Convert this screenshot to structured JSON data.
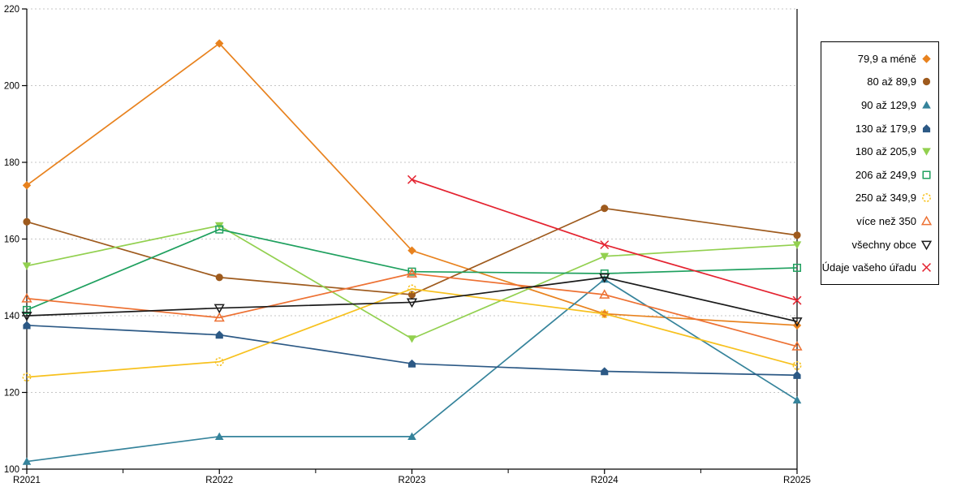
{
  "chart_data": {
    "type": "line",
    "title": "",
    "xlabel": "",
    "ylabel": "",
    "categories": [
      "R2021",
      "R2022",
      "R2023",
      "R2024",
      "R2025"
    ],
    "ylim": [
      100,
      220
    ],
    "y_tick_step": 20,
    "y_ticks": [
      100,
      120,
      140,
      160,
      180,
      200,
      220
    ],
    "grid": "horizontal-dotted",
    "legend_position": "right-box",
    "has_right_frame": true,
    "minor_x_ticks_between_categories": true,
    "series": [
      {
        "name": "79,9 a méně",
        "marker": "diamond",
        "color": "#E8821E",
        "values": [
          174,
          211,
          157,
          140.5,
          137.5
        ]
      },
      {
        "name": "80 až 89,9",
        "marker": "circle",
        "color": "#9E5A1D",
        "values": [
          164.5,
          150,
          145.5,
          168,
          161
        ]
      },
      {
        "name": "90 až 129,9",
        "marker": "triangle-up",
        "color": "#35839B",
        "values": [
          102,
          108.5,
          108.5,
          149.5,
          118
        ]
      },
      {
        "name": "130 až 179,9",
        "marker": "pentagon",
        "color": "#2C5985",
        "values": [
          137.5,
          135,
          127.5,
          125.5,
          124.5
        ]
      },
      {
        "name": "180 až 205,9",
        "marker": "triangle-down",
        "color": "#92D04F",
        "values": [
          153,
          163.5,
          134,
          155.5,
          158.5
        ]
      },
      {
        "name": "206 až 249,9",
        "marker": "square-open",
        "color": "#1FA05F",
        "values": [
          141.5,
          162.5,
          151.5,
          151,
          152.5
        ]
      },
      {
        "name": "250 až 349,9",
        "marker": "circle-dashed-open",
        "color": "#F7C11E",
        "values": [
          124,
          128,
          147,
          140.5,
          127
        ]
      },
      {
        "name": "více než 350",
        "marker": "triangle-up-open",
        "color": "#ED7133",
        "values": [
          144.5,
          139.5,
          151,
          145.5,
          132
        ]
      },
      {
        "name": "všechny obce",
        "marker": "triangle-down-open",
        "color": "#1A1A1A",
        "values": [
          140,
          142,
          143.5,
          150,
          138.5
        ]
      },
      {
        "name": "Údaje vašeho úřadu",
        "marker": "x-cross",
        "color": "#E42330",
        "values": [
          null,
          null,
          175.5,
          158.5,
          144
        ]
      }
    ]
  },
  "colors": {
    "background": "#FFFFFF",
    "axis": "#000000",
    "gridline": "#C6C6C6",
    "tick_label": "#000000",
    "legend_border": "#000000"
  }
}
